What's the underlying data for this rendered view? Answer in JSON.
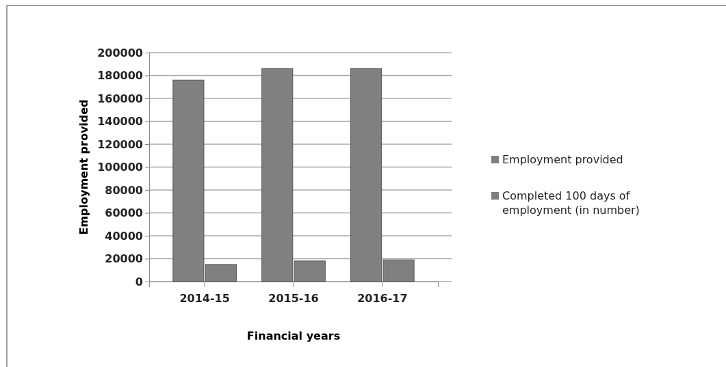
{
  "chart_data": {
    "type": "bar",
    "xlabel": "Financial years",
    "ylabel": "Employment provided",
    "categories": [
      "2014-15",
      "2015-16",
      "2016-17"
    ],
    "series": [
      {
        "name": "Employment provided",
        "color": "#808080",
        "values": [
          176000,
          186000,
          186000
        ]
      },
      {
        "name": "Completed 100 days of employment (in number)",
        "color": "#808080",
        "values": [
          15000,
          18000,
          19000
        ]
      }
    ],
    "ylim": [
      0,
      200000
    ],
    "yticks": [
      0,
      20000,
      40000,
      60000,
      80000,
      100000,
      120000,
      140000,
      160000,
      180000,
      200000
    ],
    "grid": "y",
    "legend": "right"
  }
}
